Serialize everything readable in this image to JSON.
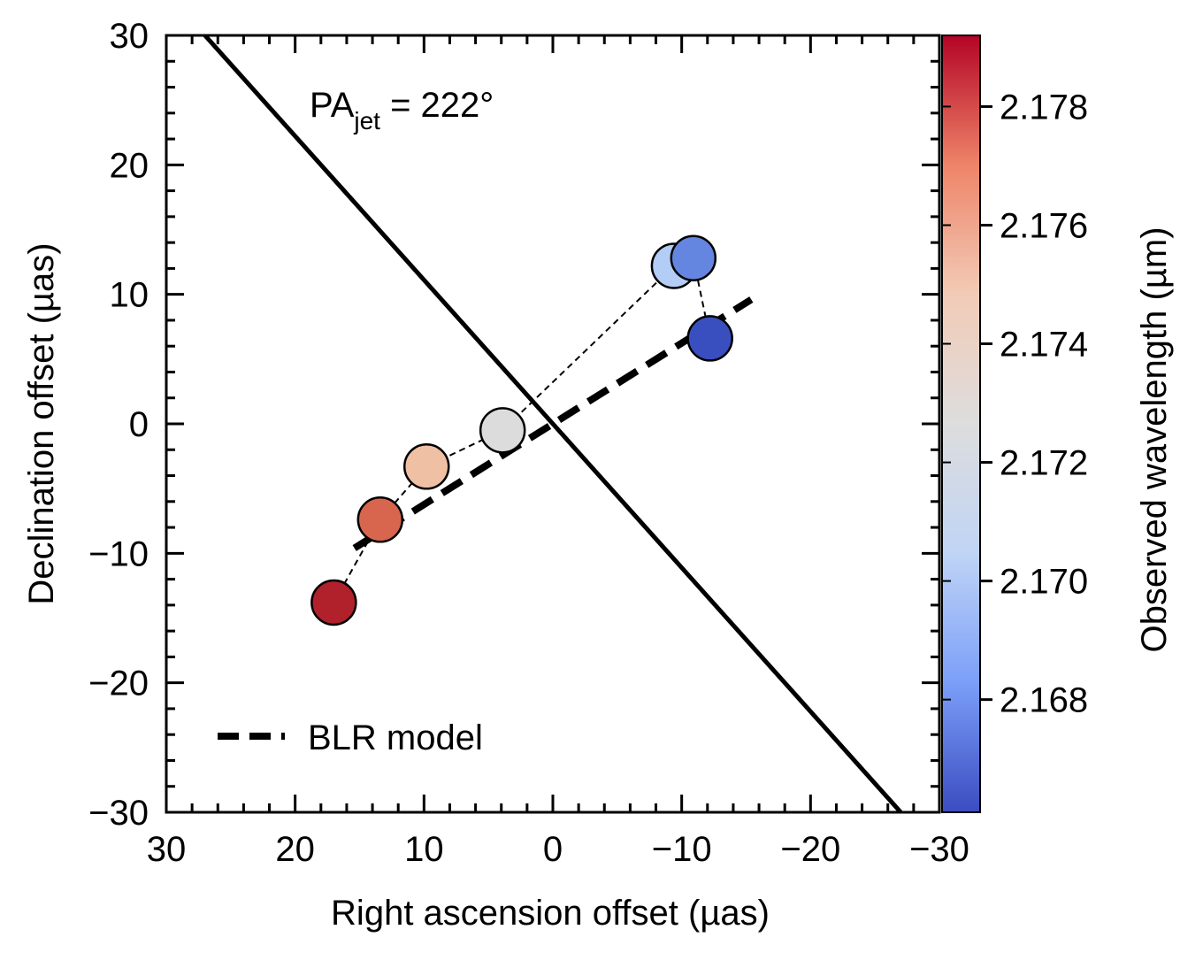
{
  "chart_data": {
    "type": "scatter",
    "xlabel": "Right ascension offset (µas)",
    "ylabel": "Declination offset (µas)",
    "xlim": [
      30,
      -30
    ],
    "ylim": [
      -30,
      30
    ],
    "xticks": [
      30,
      20,
      10,
      0,
      -10,
      -20,
      -30
    ],
    "yticks": [
      30,
      20,
      10,
      0,
      -10,
      -20,
      -30
    ],
    "x_tick_labels": [
      "30",
      "20",
      "10",
      "0",
      "−10",
      "−20",
      "−30"
    ],
    "y_tick_labels": [
      "30",
      "20",
      "10",
      "0",
      "−10",
      "−20",
      "−30"
    ],
    "grid": false,
    "colorbar": {
      "label": "Observed wavelength (µm)",
      "range": [
        2.1661,
        2.1792
      ],
      "ticks": [
        2.168,
        2.17,
        2.172,
        2.174,
        2.176,
        2.178
      ],
      "tick_labels": [
        "2.168",
        "2.170",
        "2.172",
        "2.174",
        "2.176",
        "2.178"
      ],
      "colormap": [
        "#3b4cc0",
        "#7b9ff9",
        "#c0d4f5",
        "#dddddd",
        "#f2cbb7",
        "#ee8468",
        "#b40426"
      ]
    },
    "points": [
      {
        "x": 17,
        "y": -13.8,
        "wavelength": 2.1787,
        "color": "#b0212b"
      },
      {
        "x": 13.4,
        "y": -7.4,
        "wavelength": 2.1768,
        "color": "#d8664f"
      },
      {
        "x": 9.8,
        "y": -3.3,
        "wavelength": 2.1752,
        "color": "#f0c0a4"
      },
      {
        "x": 3.9,
        "y": -0.5,
        "wavelength": 2.1725,
        "color": "#dcdcdc"
      },
      {
        "x": -9.4,
        "y": 12.2,
        "wavelength": 2.1705,
        "color": "#b3cdf6"
      },
      {
        "x": -10.9,
        "y": 12.8,
        "wavelength": 2.168,
        "color": "#6586e0"
      },
      {
        "x": -12.2,
        "y": 6.6,
        "wavelength": 2.1665,
        "color": "#3a4fbf"
      }
    ],
    "connector_order": [
      0,
      1,
      2,
      3,
      4,
      5,
      6
    ],
    "jet_line": {
      "x": [
        27,
        -27
      ],
      "y": [
        30,
        -30
      ]
    },
    "blr_model_line": {
      "x": [
        15.4,
        -15.4
      ],
      "y": [
        -9.6,
        9.6
      ]
    },
    "annotation": {
      "main": "PA",
      "subscript": "jet",
      "suffix": " = 222°"
    },
    "legend": {
      "label": "BLR model",
      "placement": "bottom-left"
    }
  }
}
